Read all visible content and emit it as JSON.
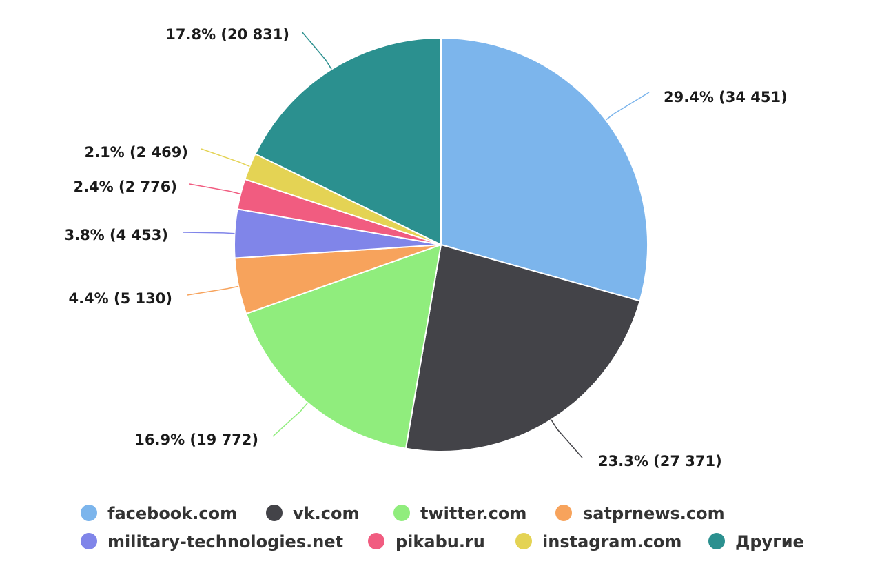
{
  "chart_data": {
    "type": "pie",
    "series": [
      {
        "name": "facebook.com",
        "value": 34451,
        "percent": 29.4,
        "color": "#7cb5ec",
        "label": "29.4% (34 451)"
      },
      {
        "name": "vk.com",
        "value": 27371,
        "percent": 23.3,
        "color": "#434348",
        "label": "23.3% (27 371)"
      },
      {
        "name": "twitter.com",
        "value": 19772,
        "percent": 16.9,
        "color": "#90ed7d",
        "label": "16.9% (19 772)"
      },
      {
        "name": "satprnews.com",
        "value": 5130,
        "percent": 4.4,
        "color": "#f7a35c",
        "label": "4.4% (5 130)"
      },
      {
        "name": "military-technologies.net",
        "value": 4453,
        "percent": 3.8,
        "color": "#8085e9",
        "label": "3.8% (4 453)"
      },
      {
        "name": "pikabu.ru",
        "value": 2776,
        "percent": 2.4,
        "color": "#f15c80",
        "label": "2.4% (2 776)"
      },
      {
        "name": "instagram.com",
        "value": 2469,
        "percent": 2.1,
        "color": "#e4d354",
        "label": "2.1% (2 469)"
      },
      {
        "name": "Другие",
        "value": 20831,
        "percent": 17.8,
        "color": "#2b908f",
        "label": "17.8% (20 831)"
      }
    ],
    "start_angle": "12 o'clock",
    "direction": "clockwise",
    "legend_position": "bottom"
  }
}
